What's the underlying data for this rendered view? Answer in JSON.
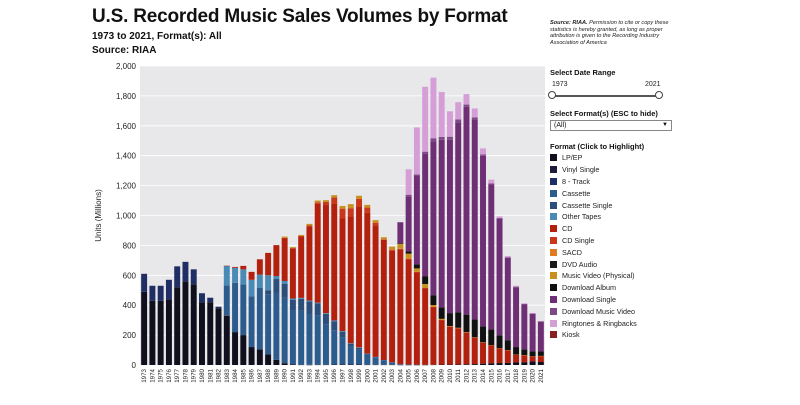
{
  "header": {
    "title": "U.S. Recorded Music Sales Volumes by Format",
    "subtitle": "1973 to 2021, Format(s): All",
    "source": "Source: RIAA",
    "permission_lead": "Source: RIAA.",
    "permission_text": "Permission to cite or copy these statistics is hereby granted, as long as proper attribution is given to the Recording Industry Association of America"
  },
  "controls": {
    "date_range_label": "Select Date Range",
    "range_start": "1973",
    "range_end": "2021",
    "format_label": "Select Format(s) (ESC to hide)",
    "format_selected": "(All)",
    "legend_label": "Format (Click to Highlight)"
  },
  "chart_data": {
    "type": "bar",
    "stacked": true,
    "ylabel": "Units (Millions)",
    "xlabel": "",
    "ylim": [
      0,
      2000
    ],
    "y_ticks": [
      "0",
      "200",
      "400",
      "600",
      "800",
      "1,000",
      "1,200",
      "1,400",
      "1,600",
      "1,800",
      "2,000"
    ],
    "grid": true,
    "legend_position": "right",
    "categories": [
      "1973",
      "1974",
      "1975",
      "1976",
      "1977",
      "1978",
      "1979",
      "1980",
      "1981",
      "1982",
      "1983",
      "1984",
      "1985",
      "1986",
      "1987",
      "1988",
      "1989",
      "1990",
      "1991",
      "1992",
      "1993",
      "1994",
      "1995",
      "1996",
      "1997",
      "1998",
      "1999",
      "2000",
      "2001",
      "2002",
      "2003",
      "2004",
      "2005",
      "2006",
      "2007",
      "2008",
      "2009",
      "2010",
      "2011",
      "2012",
      "2013",
      "2014",
      "2015",
      "2016",
      "2017",
      "2018",
      "2019",
      "2020",
      "2021"
    ],
    "series": [
      {
        "name": "LP/EP",
        "color": "#0f0f1e",
        "values": [
          490,
          430,
          430,
          440,
          520,
          560,
          540,
          420,
          420,
          380,
          330,
          220,
          200,
          120,
          105,
          70,
          35,
          12,
          5,
          2,
          1,
          2,
          2,
          3,
          3,
          3,
          3,
          2,
          2,
          2,
          2,
          1,
          1,
          1,
          1,
          2,
          3,
          3,
          4,
          5,
          6,
          9,
          12,
          13,
          14,
          17,
          19,
          25,
          20
        ]
      },
      {
        "name": "Vinyl Single",
        "color": "#1c1c3a",
        "values": [
          0,
          0,
          0,
          0,
          0,
          0,
          0,
          0,
          0,
          0,
          0,
          0,
          0,
          0,
          0,
          0,
          0,
          0,
          0,
          0,
          0,
          0,
          0,
          0,
          0,
          0,
          0,
          0,
          0,
          0,
          0,
          0,
          0,
          0,
          0,
          0,
          0,
          0,
          0,
          0,
          0,
          0,
          0,
          0,
          0,
          0,
          0,
          0,
          0
        ]
      },
      {
        "name": "8 - Track",
        "color": "#1f2f66",
        "values": [
          120,
          100,
          100,
          130,
          140,
          130,
          100,
          60,
          30,
          10,
          3,
          0,
          0,
          0,
          0,
          0,
          0,
          0,
          0,
          0,
          0,
          0,
          0,
          0,
          0,
          0,
          0,
          0,
          0,
          0,
          0,
          0,
          0,
          0,
          0,
          0,
          0,
          0,
          0,
          0,
          0,
          0,
          0,
          0,
          0,
          0,
          0,
          0,
          0
        ]
      },
      {
        "name": "Cassette",
        "color": "#2c5b8e",
        "values": [
          0,
          0,
          0,
          0,
          0,
          0,
          0,
          0,
          0,
          0,
          200,
          330,
          340,
          340,
          410,
          400,
          450,
          440,
          360,
          360,
          340,
          330,
          270,
          230,
          180,
          120,
          100,
          70,
          50,
          30,
          15,
          5,
          2,
          1,
          0,
          0,
          0,
          0,
          0,
          0,
          0,
          0,
          0,
          0,
          0,
          0,
          0,
          0,
          0
        ]
      },
      {
        "name": "Cassette Single",
        "color": "#2b4f7a",
        "values": [
          0,
          0,
          0,
          0,
          0,
          0,
          0,
          0,
          0,
          0,
          0,
          0,
          0,
          0,
          0,
          30,
          90,
          90,
          70,
          80,
          85,
          80,
          70,
          60,
          40,
          20,
          12,
          2,
          0,
          0,
          0,
          0,
          0,
          0,
          0,
          0,
          0,
          0,
          0,
          0,
          0,
          0,
          0,
          0,
          0,
          0,
          0,
          0,
          0
        ]
      },
      {
        "name": "Other Tapes",
        "color": "#4a8ab6",
        "values": [
          0,
          0,
          0,
          0,
          0,
          0,
          0,
          0,
          0,
          0,
          130,
          100,
          100,
          110,
          90,
          100,
          20,
          20,
          10,
          7,
          5,
          5,
          5,
          5,
          4,
          3,
          3,
          2,
          2,
          1,
          1,
          0,
          0,
          0,
          0,
          0,
          0,
          0,
          0,
          0,
          0,
          0,
          0,
          0,
          0,
          0,
          0,
          0,
          0
        ]
      },
      {
        "name": "CD",
        "color": "#b3210e",
        "values": [
          0,
          0,
          0,
          0,
          0,
          0,
          0,
          0,
          0,
          0,
          1,
          6,
          23,
          53,
          102,
          150,
          207,
          287,
          333,
          407,
          495,
          662,
          723,
          779,
          753,
          847,
          939,
          943,
          881,
          804,
          746,
          767,
          705,
          619,
          511,
          385,
          297,
          253,
          241,
          211,
          178,
          141,
          120,
          99,
          85,
          52,
          47,
          32,
          40
        ]
      },
      {
        "name": "CD Single",
        "color": "#c8381c",
        "values": [
          0,
          0,
          0,
          0,
          0,
          0,
          0,
          0,
          0,
          0,
          0,
          0,
          0,
          0,
          0,
          0,
          0,
          1,
          5,
          7,
          7,
          9,
          21,
          43,
          66,
          56,
          55,
          34,
          17,
          4,
          8,
          3,
          3,
          2,
          3,
          1,
          1,
          1,
          1,
          1,
          0,
          0,
          0,
          0,
          0,
          0,
          0,
          0,
          0
        ]
      },
      {
        "name": "SACD",
        "color": "#e07a22",
        "values": [
          0,
          0,
          0,
          0,
          0,
          0,
          0,
          0,
          0,
          0,
          0,
          0,
          0,
          0,
          0,
          0,
          0,
          0,
          0,
          0,
          0,
          0,
          0,
          0,
          0,
          0,
          0,
          0,
          0,
          0,
          1,
          1,
          1,
          0,
          0,
          0,
          0,
          0,
          0,
          0,
          0,
          0,
          0,
          0,
          0,
          0,
          0,
          0,
          0
        ]
      },
      {
        "name": "DVD Audio",
        "color": "#1a1a1a",
        "values": [
          0,
          0,
          0,
          0,
          0,
          0,
          0,
          0,
          0,
          0,
          0,
          0,
          0,
          0,
          0,
          0,
          0,
          0,
          0,
          0,
          0,
          0,
          0,
          0,
          0,
          0,
          0,
          0,
          0,
          0,
          0,
          0,
          0,
          0,
          0,
          0,
          0,
          0,
          0,
          0,
          0,
          0,
          0,
          0,
          0,
          0,
          0,
          0,
          0
        ]
      },
      {
        "name": "Music Video (Physical)",
        "color": "#c8901e",
        "values": [
          0,
          0,
          0,
          0,
          0,
          0,
          0,
          0,
          0,
          0,
          0,
          0,
          0,
          0,
          0,
          0,
          0,
          9,
          6,
          7,
          11,
          12,
          12,
          16,
          18,
          27,
          20,
          18,
          17,
          14,
          19,
          33,
          33,
          23,
          27,
          13,
          8,
          4,
          3,
          3,
          2,
          2,
          1,
          1,
          1,
          1,
          1,
          1,
          1
        ]
      },
      {
        "name": "Download Album",
        "color": "#111111",
        "values": [
          0,
          0,
          0,
          0,
          0,
          0,
          0,
          0,
          0,
          0,
          0,
          0,
          0,
          0,
          0,
          0,
          0,
          0,
          0,
          0,
          0,
          0,
          0,
          0,
          0,
          0,
          0,
          0,
          0,
          0,
          0,
          5,
          14,
          28,
          50,
          66,
          77,
          86,
          104,
          117,
          118,
          107,
          104,
          85,
          66,
          50,
          38,
          33,
          29
        ]
      },
      {
        "name": "Download Single",
        "color": "#6e2f74",
        "values": [
          0,
          0,
          0,
          0,
          0,
          0,
          0,
          0,
          0,
          0,
          0,
          0,
          0,
          0,
          0,
          0,
          0,
          0,
          0,
          0,
          0,
          0,
          0,
          0,
          0,
          0,
          0,
          0,
          0,
          0,
          0,
          140,
          370,
          590,
          820,
          1030,
          1120,
          1160,
          1270,
          1390,
          1340,
          1140,
          970,
          780,
          550,
          400,
          300,
          250,
          200
        ]
      },
      {
        "name": "Download Music Video",
        "color": "#7e4a86",
        "values": [
          0,
          0,
          0,
          0,
          0,
          0,
          0,
          0,
          0,
          0,
          0,
          0,
          0,
          0,
          0,
          0,
          0,
          0,
          0,
          0,
          0,
          0,
          0,
          0,
          0,
          0,
          0,
          0,
          0,
          0,
          0,
          0,
          10,
          10,
          15,
          20,
          20,
          20,
          20,
          15,
          12,
          10,
          8,
          6,
          5,
          4,
          3,
          3,
          2
        ]
      },
      {
        "name": "Ringtones & Ringbacks",
        "color": "#d59ed7",
        "values": [
          0,
          0,
          0,
          0,
          0,
          0,
          0,
          0,
          0,
          0,
          0,
          0,
          0,
          0,
          0,
          0,
          0,
          0,
          0,
          0,
          0,
          0,
          0,
          0,
          0,
          0,
          0,
          0,
          0,
          0,
          0,
          0,
          170,
          315,
          434,
          405,
          300,
          170,
          115,
          70,
          60,
          40,
          25,
          10,
          8,
          6,
          5,
          4,
          3
        ]
      },
      {
        "name": "Kiosk",
        "color": "#8a1f1f",
        "values": [
          0,
          0,
          0,
          0,
          0,
          0,
          0,
          0,
          0,
          0,
          0,
          0,
          0,
          0,
          0,
          0,
          0,
          0,
          0,
          0,
          0,
          0,
          0,
          0,
          0,
          0,
          0,
          0,
          0,
          0,
          0,
          0,
          0,
          0,
          0,
          0,
          0,
          0,
          0,
          0,
          0,
          0,
          0,
          0,
          0,
          0,
          0,
          0,
          0
        ]
      }
    ]
  }
}
